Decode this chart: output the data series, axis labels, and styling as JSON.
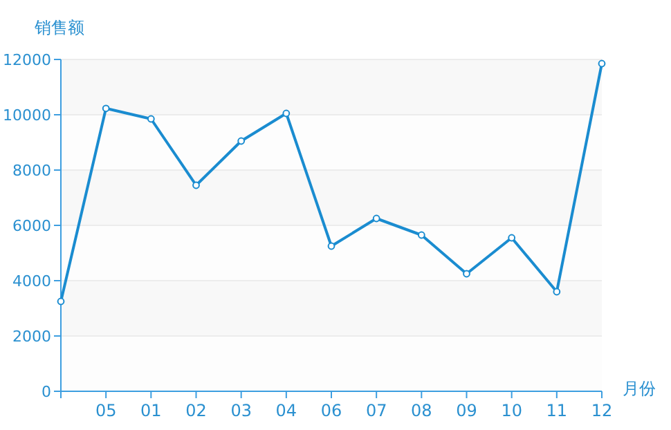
{
  "chart_data": {
    "type": "line",
    "xlabel": "月份",
    "ylabel": "销售额",
    "categories": [
      null,
      "05",
      "01",
      "02",
      "03",
      "04",
      "06",
      "07",
      "08",
      "09",
      "10",
      "11",
      "12"
    ],
    "series": [
      {
        "color": "#1a8cd0",
        "values": [
          3250,
          10230,
          9850,
          7450,
          9050,
          10050,
          5250,
          6250,
          5650,
          4250,
          5550,
          3600,
          11850
        ]
      }
    ],
    "ylim": [
      0,
      12000
    ],
    "yticks": [
      0,
      2000,
      4000,
      6000,
      8000,
      10000,
      12000
    ],
    "grid": "y",
    "marker": "circle",
    "line_style": "solid"
  }
}
